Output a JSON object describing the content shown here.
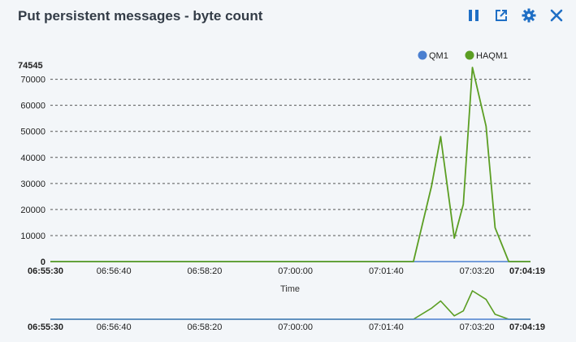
{
  "title": "Put persistent messages - byte count",
  "toolbar": [
    {
      "icon": "pause-icon",
      "name": "pause-button"
    },
    {
      "icon": "popout-icon",
      "name": "popout-button"
    },
    {
      "icon": "gear-icon",
      "name": "settings-button"
    },
    {
      "icon": "close-icon",
      "name": "close-button"
    }
  ],
  "colors": {
    "accent": "#1f6fc5",
    "qm1": "#4a7fd0",
    "haqm1": "#5b9e23",
    "text": "#333c47"
  },
  "chart_data": {
    "type": "line",
    "title": "Put persistent messages - byte count",
    "xlabel": "Time",
    "ylabel": "",
    "x_range": [
      "06:55:30",
      "07:04:19"
    ],
    "ylim": [
      0,
      74545
    ],
    "y_max_label": "74545",
    "y_ticks": [
      "0",
      "10000",
      "20000",
      "30000",
      "40000",
      "50000",
      "60000",
      "70000"
    ],
    "x_ticks": [
      "06:55:30",
      "06:56:40",
      "06:58:20",
      "07:00:00",
      "07:01:40",
      "07:03:20",
      "07:04:19"
    ],
    "grid": true,
    "legend_position": "top-right",
    "series": [
      {
        "name": "QM1",
        "color": "#4a7fd0",
        "points": [
          [
            "06:55:30",
            0
          ],
          [
            "07:04:19",
            0
          ]
        ]
      },
      {
        "name": "HAQM1",
        "color": "#5b9e23",
        "points": [
          [
            "06:55:30",
            0
          ],
          [
            "07:02:10",
            0
          ],
          [
            "07:02:30",
            29000
          ],
          [
            "07:02:40",
            48000
          ],
          [
            "07:02:55",
            9000
          ],
          [
            "07:03:05",
            22000
          ],
          [
            "07:03:15",
            74545
          ],
          [
            "07:03:30",
            52000
          ],
          [
            "07:03:40",
            13000
          ],
          [
            "07:03:55",
            0
          ],
          [
            "07:04:19",
            0
          ]
        ]
      }
    ],
    "navigator": {
      "x_ticks": [
        "06:55:30",
        "06:56:40",
        "06:58:20",
        "07:00:00",
        "07:01:40",
        "07:03:20",
        "07:04:19"
      ]
    }
  }
}
